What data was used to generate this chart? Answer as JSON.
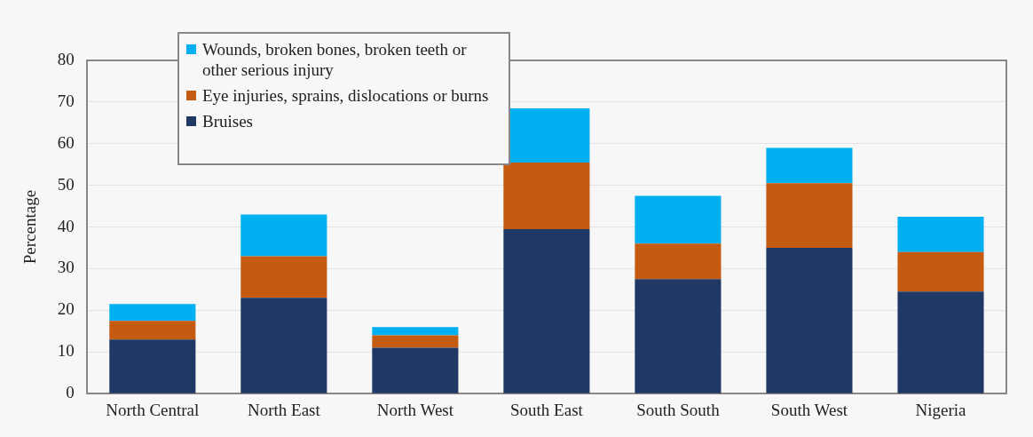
{
  "chart_data": {
    "type": "bar",
    "stacked": true,
    "ylabel": "Percentage",
    "categories": [
      "North Central",
      "North East",
      "North West",
      "South East",
      "South South",
      "South West",
      "Nigeria"
    ],
    "series": [
      {
        "name": "Bruises",
        "color": "#1f3864",
        "values": [
          13,
          23,
          11,
          39.5,
          27.5,
          35,
          24.5
        ]
      },
      {
        "name": "Eye injuries, sprains, dislocations or burns",
        "color": "#c55a11",
        "values": [
          4.5,
          10,
          3,
          16,
          8.5,
          15.5,
          9.5
        ]
      },
      {
        "name": "Wounds, broken bones, broken teeth or other serious injury",
        "color": "#00b0f0",
        "values": [
          4,
          10,
          2,
          13,
          11.5,
          8.5,
          8.5
        ]
      }
    ],
    "ylim": [
      0,
      80
    ],
    "yticks": [
      0,
      10,
      20,
      30,
      40,
      50,
      60,
      70,
      80
    ],
    "grid": "y",
    "legend": "top left"
  }
}
